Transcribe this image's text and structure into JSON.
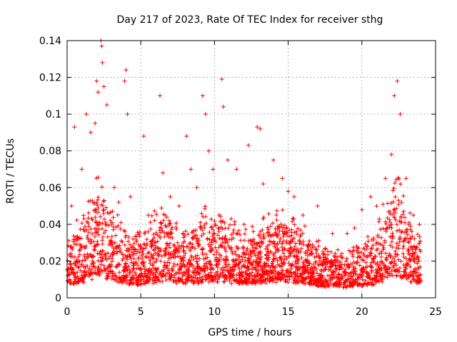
{
  "chart_data": {
    "type": "scatter",
    "title": "Day 217 of 2023, Rate Of TEC Index for receiver sthg",
    "xlabel": "GPS time / hours",
    "ylabel": "ROTI / TECUs",
    "xlim": [
      0,
      25
    ],
    "ylim": [
      0,
      0.14
    ],
    "xticks": [
      0,
      5,
      10,
      15,
      20,
      25
    ],
    "xtick_labels": [
      "0",
      "5",
      "10",
      "15",
      "20",
      "25"
    ],
    "yticks": [
      0,
      0.02,
      0.04,
      0.06,
      0.08,
      0.1,
      0.12,
      0.14
    ],
    "ytick_labels": [
      "0",
      "0.02",
      "0.04",
      "0.06",
      "0.08",
      "0.1",
      "0.12",
      "0.14"
    ],
    "grid": true,
    "marker": "plus",
    "color": "#ff0000",
    "series": [
      {
        "name": "ROTI",
        "x": [
          0.3,
          0.5,
          1.0,
          1.3,
          1.6,
          1.9,
          2.0,
          2.1,
          2.3,
          2.35,
          2.4,
          2.5,
          2.7,
          3.2,
          3.5,
          3.9,
          4.0,
          4.1,
          4.3,
          5.2,
          5.5,
          6.3,
          6.5,
          7.0,
          7.6,
          8.1,
          8.4,
          8.8,
          9.2,
          9.4,
          9.6,
          9.9,
          10.5,
          10.6,
          10.9,
          11.5,
          12.3,
          12.9,
          13.1,
          13.3,
          14.0,
          14.6,
          15.0,
          15.4,
          16.0,
          17.0,
          18.0,
          19.0,
          19.5,
          20.0,
          20.6,
          21.0,
          21.6,
          22.0,
          22.2,
          22.4,
          22.6,
          23.0,
          23.5,
          23.9
        ],
        "y": [
          0.05,
          0.093,
          0.07,
          0.1,
          0.09,
          0.095,
          0.118,
          0.112,
          0.14,
          0.137,
          0.128,
          0.115,
          0.105,
          0.06,
          0.052,
          0.118,
          0.124,
          0.1,
          0.055,
          0.088,
          0.045,
          0.11,
          0.068,
          0.055,
          0.05,
          0.088,
          0.07,
          0.06,
          0.11,
          0.1,
          0.08,
          0.07,
          0.119,
          0.104,
          0.075,
          0.07,
          0.083,
          0.093,
          0.092,
          0.062,
          0.075,
          0.065,
          0.058,
          0.055,
          0.045,
          0.05,
          0.035,
          0.035,
          0.038,
          0.048,
          0.055,
          0.05,
          0.065,
          0.078,
          0.11,
          0.118,
          0.1,
          0.065,
          0.045,
          0.04
        ]
      }
    ]
  }
}
